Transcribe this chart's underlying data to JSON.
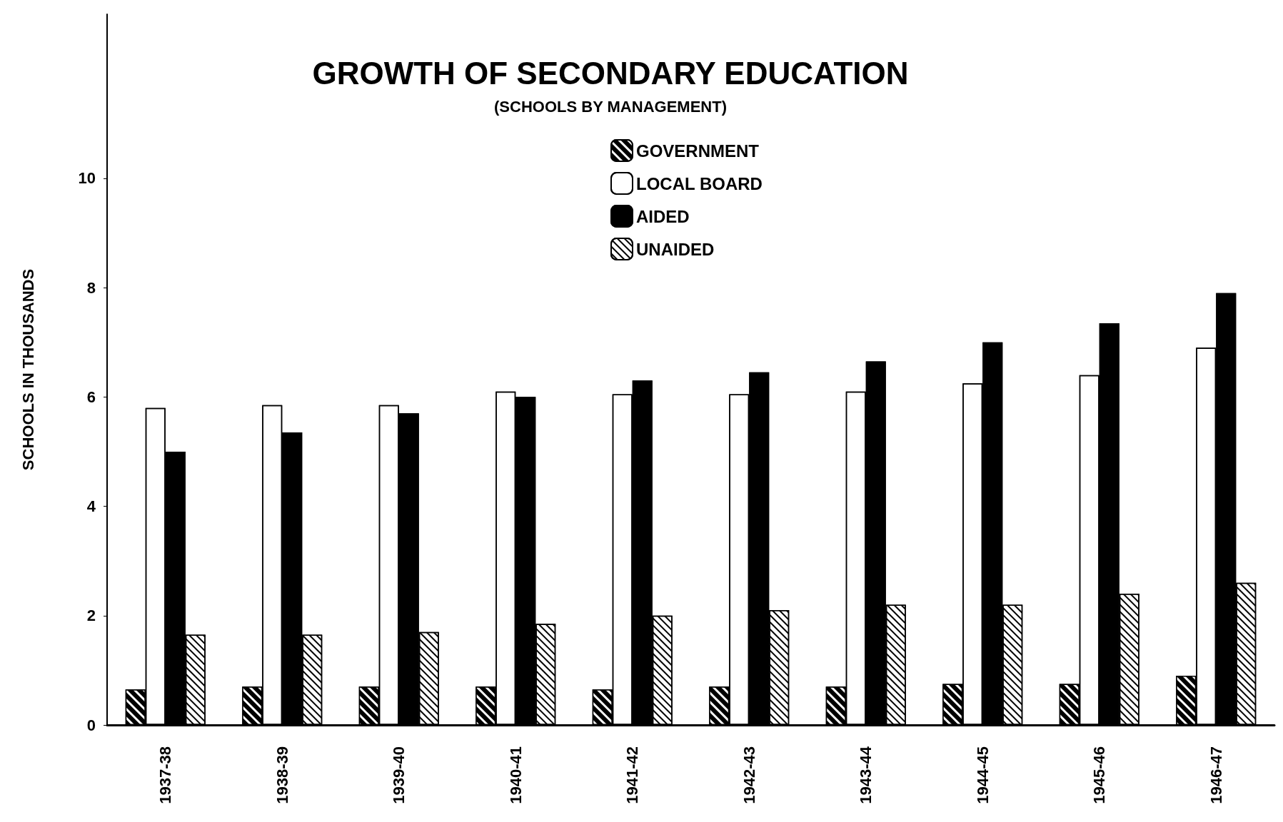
{
  "chart_data": {
    "type": "bar",
    "title": "GROWTH OF SECONDARY EDUCATION",
    "subtitle": "(SCHOOLS BY MANAGEMENT)",
    "ylabel": "SCHOOLS IN THOUSANDS",
    "categories": [
      "1937-38",
      "1938-39",
      "1939-40",
      "1940-41",
      "1941-42",
      "1942-43",
      "1943-44",
      "1944-45",
      "1945-46",
      "1946-47"
    ],
    "series": [
      {
        "name": "GOVERNMENT",
        "color": "#000000",
        "values": [
          0.65,
          0.7,
          0.7,
          0.7,
          0.65,
          0.7,
          0.7,
          0.75,
          0.75,
          0.9
        ]
      },
      {
        "name": "LOCAL BOARD",
        "color": "#ffffff",
        "values": [
          5.8,
          5.85,
          5.85,
          6.1,
          6.05,
          6.05,
          6.1,
          6.25,
          6.4,
          6.9
        ]
      },
      {
        "name": "AIDED",
        "color": "#000000",
        "values": [
          5.0,
          5.35,
          5.7,
          6.0,
          6.3,
          6.45,
          6.65,
          7.0,
          7.35,
          7.9
        ]
      },
      {
        "name": "UNAIDED",
        "color": "#ffffff",
        "values": [
          1.65,
          1.65,
          1.7,
          1.85,
          2.0,
          2.1,
          2.2,
          2.2,
          2.4,
          2.6
        ]
      }
    ],
    "ylim": [
      0,
      13
    ],
    "yticks": [
      0,
      2,
      4,
      6,
      8,
      10
    ],
    "grid": false,
    "legend": "top"
  }
}
